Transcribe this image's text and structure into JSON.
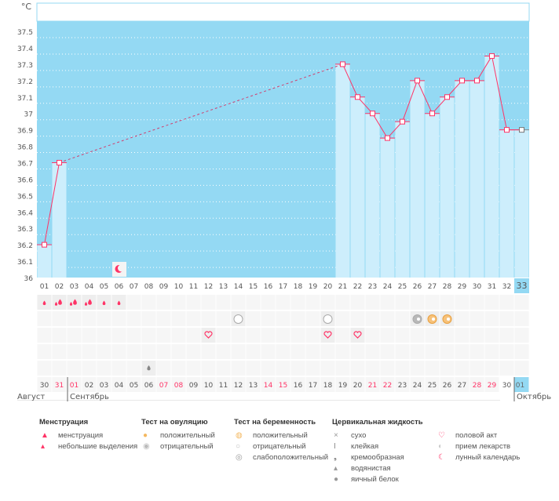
{
  "chart_data": {
    "type": "line",
    "ylabel": "°C",
    "ylim": [
      36,
      37.55
    ],
    "yticks": [
      "36",
      "36.1",
      "36.2",
      "36.3",
      "36.4",
      "36.5",
      "36.6",
      "36.7",
      "36.8",
      "36.9",
      "37",
      "37.1",
      "37.2",
      "37.3",
      "37.4",
      "37.5"
    ],
    "grid": true,
    "cycle_days": [
      "01",
      "02",
      "03",
      "04",
      "05",
      "06",
      "07",
      "08",
      "09",
      "10",
      "11",
      "12",
      "13",
      "14",
      "15",
      "16",
      "17",
      "18",
      "19",
      "20",
      "21",
      "22",
      "23",
      "24",
      "25",
      "26",
      "27",
      "28",
      "29",
      "30",
      "31",
      "32",
      "33"
    ],
    "current_day": "33",
    "temperatures": [
      36.2,
      36.7,
      null,
      null,
      null,
      null,
      null,
      null,
      null,
      null,
      null,
      null,
      null,
      null,
      null,
      null,
      null,
      null,
      null,
      null,
      37.3,
      37.1,
      37.0,
      36.85,
      36.95,
      37.2,
      37.0,
      37.1,
      37.2,
      37.2,
      37.35,
      36.9,
      36.9
    ],
    "dates": [
      "30",
      "31",
      "01",
      "02",
      "03",
      "04",
      "05",
      "06",
      "07",
      "08",
      "09",
      "10",
      "11",
      "12",
      "13",
      "14",
      "15",
      "16",
      "17",
      "18",
      "19",
      "20",
      "21",
      "22",
      "23",
      "24",
      "25",
      "26",
      "27",
      "28",
      "29",
      "30",
      "01"
    ],
    "weekend_dates_index": [
      1,
      2,
      8,
      9,
      15,
      16,
      22,
      23,
      29,
      30
    ],
    "months": [
      "Август",
      "Сентябрь",
      "Октябрь"
    ],
    "moon_days": [
      6
    ],
    "menstruation": {
      "1": "light",
      "2": "heavy",
      "3": "heavy",
      "4": "heavy",
      "5": "light",
      "6": "light"
    },
    "tests": {
      "14": "pregnancy-negative",
      "20": "pregnancy-negative",
      "26": "pregnancy-weak",
      "27": "pregnancy-positive",
      "28": "pregnancy-positive"
    },
    "intercourse_days": [
      12,
      20,
      22
    ],
    "cervical_fluid": {
      "8": "watery"
    },
    "colors": {
      "plot_bg": "#94d9f3",
      "bar": "#cdeefc",
      "line": "#ff3366",
      "weekend": "#ff3366",
      "highlight": "#94d9f3"
    }
  },
  "legend": [
    {
      "title": "Менструация",
      "items": [
        {
          "icon": "menstruation-icon",
          "label": "менструация"
        },
        {
          "icon": "spotting-icon",
          "label": "небольшие выделения"
        }
      ]
    },
    {
      "title": "Тест на овуляцию",
      "items": [
        {
          "icon": "ovulation-positive-icon",
          "label": "положительный"
        },
        {
          "icon": "ovulation-negative-icon",
          "label": "отрицательный"
        }
      ]
    },
    {
      "title": "Тест на беременность",
      "items": [
        {
          "icon": "pregnancy-positive-icon",
          "label": "положительный"
        },
        {
          "icon": "pregnancy-negative-icon",
          "label": "отрицательный"
        },
        {
          "icon": "pregnancy-weak-icon",
          "label": "слабоположительный"
        }
      ]
    },
    {
      "title": "Цервикальная жидкость",
      "items": [
        {
          "icon": "dry-icon",
          "label": "сухо"
        },
        {
          "icon": "sticky-icon",
          "label": "клейкая"
        },
        {
          "icon": "creamy-icon",
          "label": "кремообразная"
        },
        {
          "icon": "watery-icon",
          "label": "водянистая"
        },
        {
          "icon": "egg-white-icon",
          "label": "яичный белок"
        }
      ]
    },
    {
      "title": "",
      "items": [
        {
          "icon": "heart-icon",
          "label": "половой акт"
        },
        {
          "icon": "pill-icon",
          "label": "прием лекарств"
        },
        {
          "icon": "moon-icon",
          "label": "лунный календарь"
        }
      ]
    }
  ]
}
